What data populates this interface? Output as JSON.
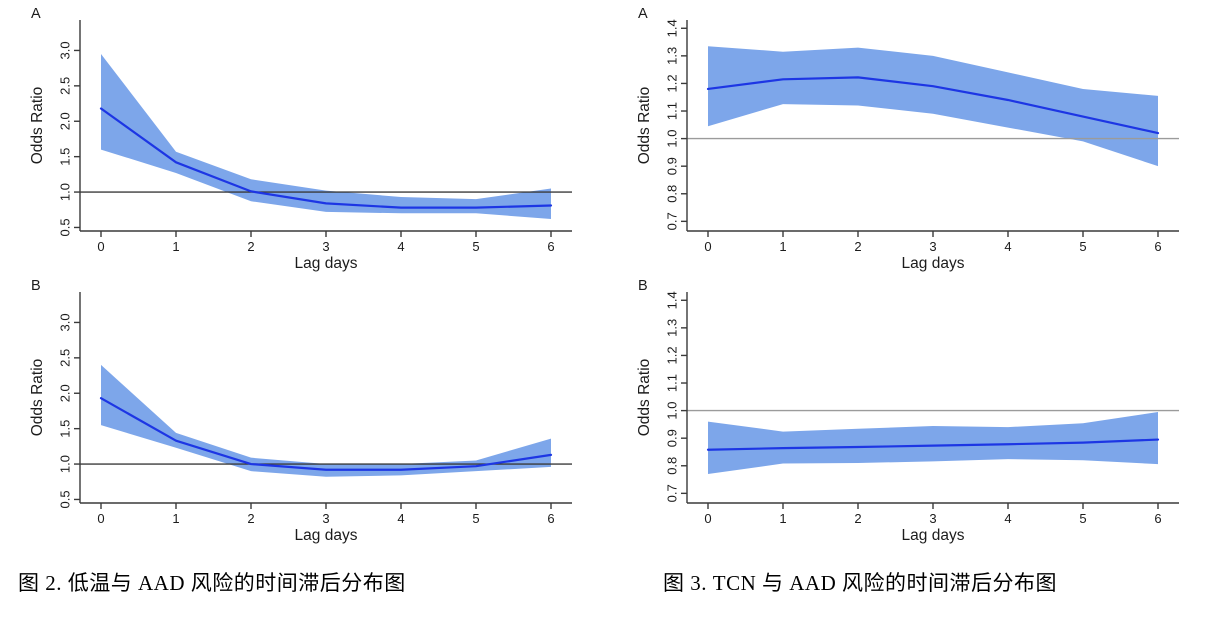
{
  "style": {
    "band_color": "#7da6ea",
    "line_color": "#1d36e4",
    "axis_color": "#3a3a3a",
    "tick_text_color": "#1c1c1c",
    "ref_color_dark": "#3b3b3b",
    "ref_color_light": "#9b9b9b",
    "background": "#ffffff"
  },
  "figures": [
    {
      "id": "figure-2",
      "caption": "图 2. 低温与 AAD 风险的时间滞后分布图"
    },
    {
      "id": "figure-3",
      "caption": "图 3. TCN 与 AAD 风险的时间滞后分布图"
    }
  ],
  "chart_data": [
    {
      "id": "fig2-panel-a",
      "figure": "figure-2",
      "panel_label": "A",
      "type": "area",
      "x": [
        0,
        1,
        2,
        3,
        4,
        5,
        6
      ],
      "xlabel": "Lag days",
      "ylabel": "Odds Ratio",
      "xtick_labels": [
        "0",
        "1",
        "2",
        "3",
        "4",
        "5",
        "6"
      ],
      "yticks": [
        0.5,
        1.0,
        1.5,
        2.0,
        2.5,
        3.0
      ],
      "ytick_labels": [
        "0.5",
        "1.0",
        "1.5",
        "2.0",
        "2.5",
        "3.0"
      ],
      "ylim": [
        0.45,
        3.43
      ],
      "ref_line": 1.0,
      "ref_style": "dark",
      "grid": false,
      "legend": "none",
      "series": [
        {
          "name": "odds-ratio",
          "values": [
            2.18,
            1.42,
            1.01,
            0.84,
            0.78,
            0.78,
            0.81
          ]
        },
        {
          "name": "ci-upper",
          "values": [
            2.95,
            1.57,
            1.18,
            1.02,
            0.93,
            0.9,
            1.05
          ]
        },
        {
          "name": "ci-lower",
          "values": [
            1.6,
            1.27,
            0.87,
            0.72,
            0.7,
            0.7,
            0.62
          ]
        }
      ]
    },
    {
      "id": "fig2-panel-b",
      "figure": "figure-2",
      "panel_label": "B",
      "type": "area",
      "x": [
        0,
        1,
        2,
        3,
        4,
        5,
        6
      ],
      "xlabel": "Lag days",
      "ylabel": "Odds Ratio",
      "xtick_labels": [
        "0",
        "1",
        "2",
        "3",
        "4",
        "5",
        "6"
      ],
      "yticks": [
        0.5,
        1.0,
        1.5,
        2.0,
        2.5,
        3.0
      ],
      "ytick_labels": [
        "0.5",
        "1.0",
        "1.5",
        "2.0",
        "2.5",
        "3.0"
      ],
      "ylim": [
        0.45,
        3.43
      ],
      "ref_line": 1.0,
      "ref_style": "dark",
      "grid": false,
      "legend": "none",
      "series": [
        {
          "name": "odds-ratio",
          "values": [
            1.93,
            1.33,
            1.0,
            0.92,
            0.92,
            0.97,
            1.13
          ]
        },
        {
          "name": "ci-upper",
          "values": [
            2.4,
            1.44,
            1.09,
            1.0,
            1.0,
            1.05,
            1.36
          ]
        },
        {
          "name": "ci-lower",
          "values": [
            1.55,
            1.23,
            0.9,
            0.82,
            0.84,
            0.9,
            0.96
          ]
        }
      ]
    },
    {
      "id": "fig3-panel-a",
      "figure": "figure-3",
      "panel_label": "A",
      "type": "area",
      "x": [
        0,
        1,
        2,
        3,
        4,
        5,
        6
      ],
      "xlabel": "Lag days",
      "ylabel": "Odds Ratio",
      "xtick_labels": [
        "0",
        "1",
        "2",
        "3",
        "4",
        "5",
        "6"
      ],
      "yticks": [
        0.7,
        0.8,
        0.9,
        1.0,
        1.1,
        1.2,
        1.3,
        1.4
      ],
      "ytick_labels": [
        "0.7",
        "0.8",
        "0.9",
        "1.0",
        "1.1",
        "1.2",
        "1.3",
        "1.4"
      ],
      "ylim": [
        0.665,
        1.43
      ],
      "ref_line": 1.0,
      "ref_style": "light",
      "grid": false,
      "legend": "none",
      "series": [
        {
          "name": "odds-ratio",
          "values": [
            1.18,
            1.215,
            1.222,
            1.19,
            1.14,
            1.08,
            1.02
          ]
        },
        {
          "name": "ci-upper",
          "values": [
            1.335,
            1.315,
            1.33,
            1.3,
            1.24,
            1.18,
            1.155
          ]
        },
        {
          "name": "ci-lower",
          "values": [
            1.045,
            1.125,
            1.12,
            1.09,
            1.04,
            0.99,
            0.9
          ]
        }
      ]
    },
    {
      "id": "fig3-panel-b",
      "figure": "figure-3",
      "panel_label": "B",
      "type": "area",
      "x": [
        0,
        1,
        2,
        3,
        4,
        5,
        6
      ],
      "xlabel": "Lag days",
      "ylabel": "Odds Ratio",
      "xtick_labels": [
        "0",
        "1",
        "2",
        "3",
        "4",
        "5",
        "6"
      ],
      "yticks": [
        0.7,
        0.8,
        0.9,
        1.0,
        1.1,
        1.2,
        1.3,
        1.4
      ],
      "ytick_labels": [
        "0.7",
        "0.8",
        "0.9",
        "1.0",
        "1.1",
        "1.2",
        "1.3",
        "1.4"
      ],
      "ylim": [
        0.665,
        1.43
      ],
      "ref_line": 1.0,
      "ref_style": "light",
      "grid": false,
      "legend": "none",
      "series": [
        {
          "name": "odds-ratio",
          "values": [
            0.858,
            0.864,
            0.868,
            0.873,
            0.878,
            0.884,
            0.895
          ]
        },
        {
          "name": "ci-upper",
          "values": [
            0.96,
            0.924,
            0.934,
            0.944,
            0.94,
            0.954,
            0.995
          ]
        },
        {
          "name": "ci-lower",
          "values": [
            0.77,
            0.808,
            0.81,
            0.816,
            0.824,
            0.82,
            0.806
          ]
        }
      ]
    }
  ]
}
